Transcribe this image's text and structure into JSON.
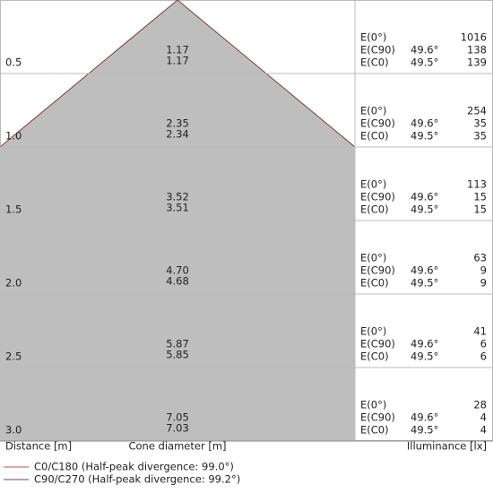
{
  "labels": {
    "e0": "E(0°)",
    "ec90": "E(C90)",
    "ec0": "E(C0)"
  },
  "rows": [
    {
      "distance": "0.5",
      "diameter_1": "1.17",
      "diameter_2": "1.17",
      "e0": "1016",
      "ec90_angle": "49.6°",
      "ec90": "138",
      "ec0_angle": "49.5°",
      "ec0": "139"
    },
    {
      "distance": "1.0",
      "diameter_1": "2.35",
      "diameter_2": "2.34",
      "e0": "254",
      "ec90_angle": "49.6°",
      "ec90": "35",
      "ec0_angle": "49.5°",
      "ec0": "35"
    },
    {
      "distance": "1.5",
      "diameter_1": "3.52",
      "diameter_2": "3.51",
      "e0": "113",
      "ec90_angle": "49.6°",
      "ec90": "15",
      "ec0_angle": "49.5°",
      "ec0": "15"
    },
    {
      "distance": "2.0",
      "diameter_1": "4.70",
      "diameter_2": "4.68",
      "e0": "63",
      "ec90_angle": "49.6°",
      "ec90": "9",
      "ec0_angle": "49.5°",
      "ec0": "9"
    },
    {
      "distance": "2.5",
      "diameter_1": "5.87",
      "diameter_2": "5.85",
      "e0": "41",
      "ec90_angle": "49.6°",
      "ec90": "6",
      "ec0_angle": "49.5°",
      "ec0": "6"
    },
    {
      "distance": "3.0",
      "diameter_1": "7.05",
      "diameter_2": "7.03",
      "e0": "28",
      "ec90_angle": "49.6°",
      "ec90": "4",
      "ec0_angle": "49.5°",
      "ec0": "4"
    }
  ],
  "footer": {
    "distance": "Distance [m]",
    "diameter": "Cone diameter [m]",
    "illuminance": "Illuminance [lx]"
  },
  "legend": [
    "C0/C180 (Half-peak divergence: 99.0°)",
    "C90/C270 (Half-peak divergence: 99.2°)"
  ]
}
